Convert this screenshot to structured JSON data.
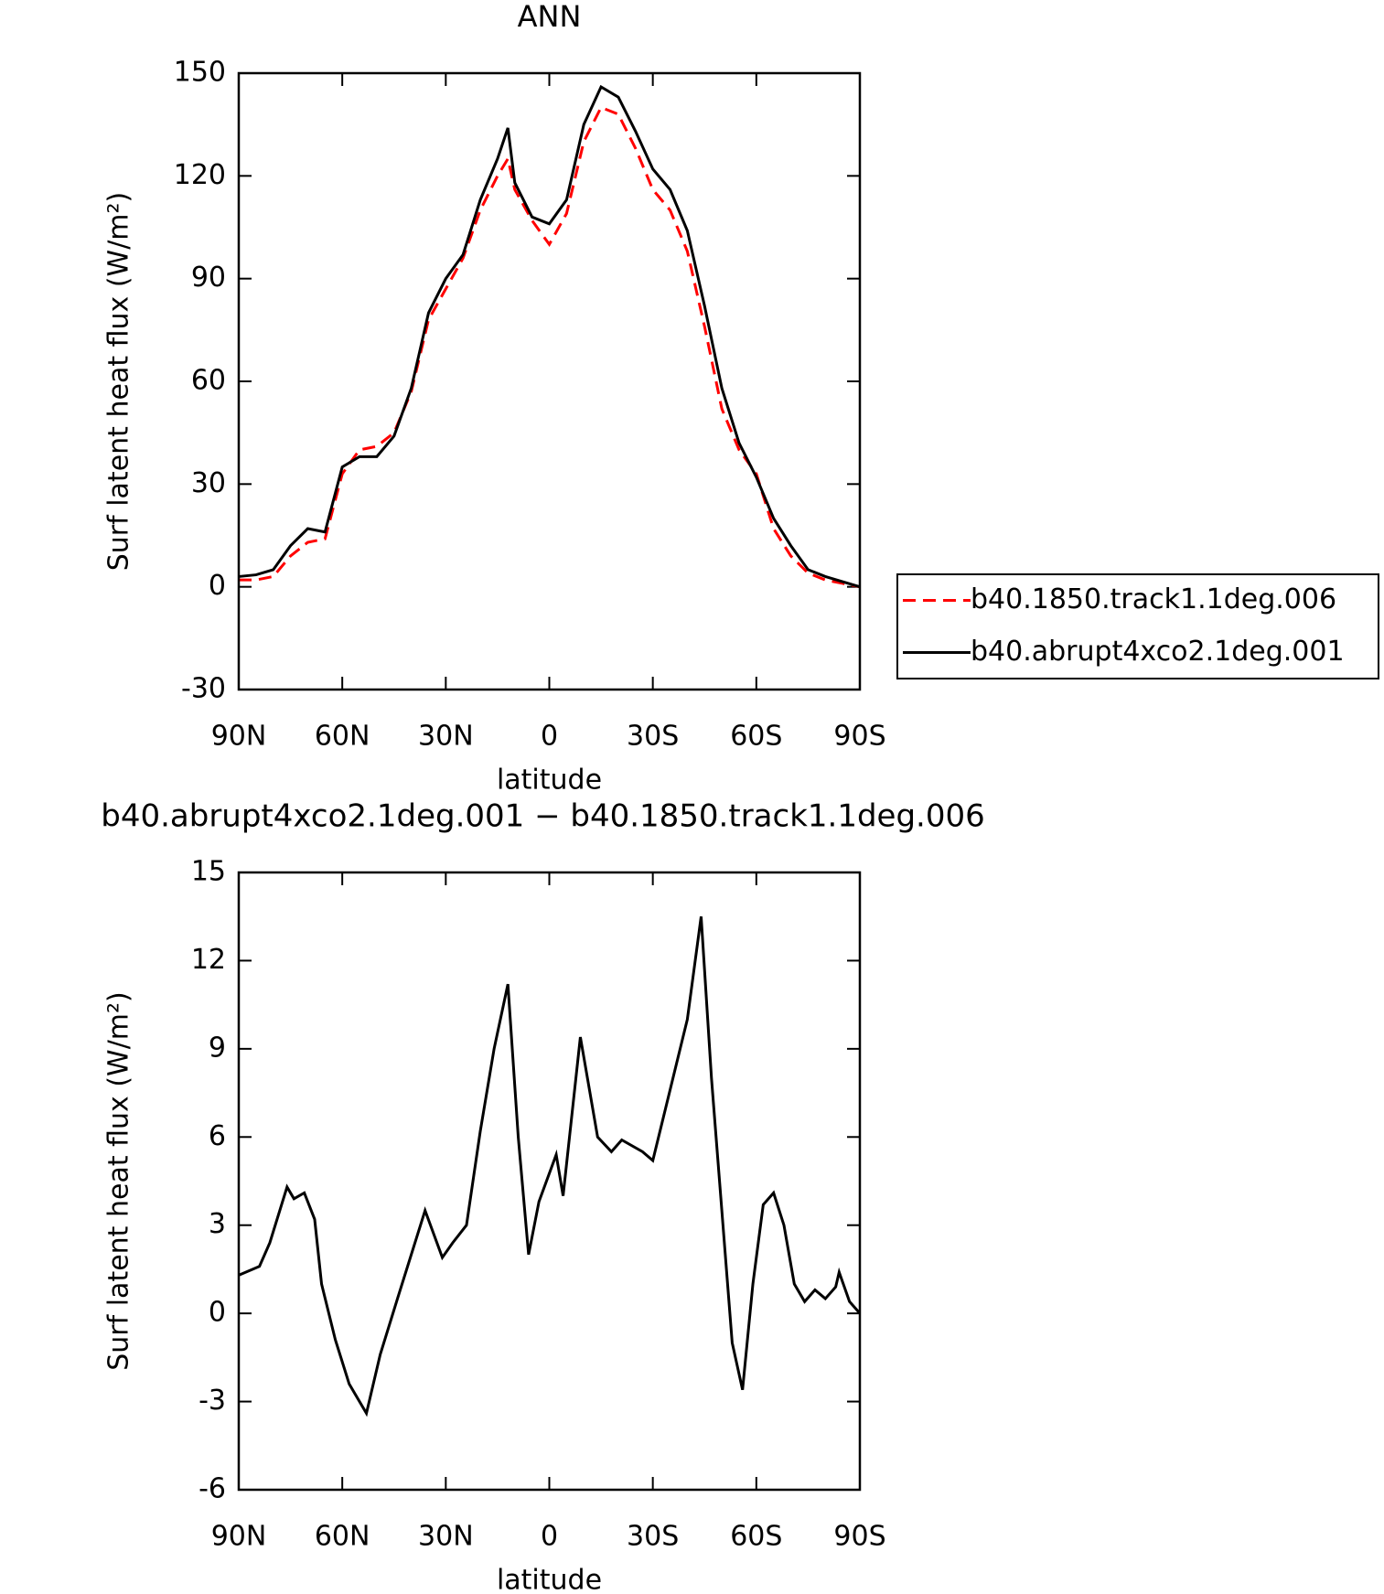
{
  "chart_data": [
    {
      "type": "line",
      "title": "ANN",
      "ylabel": "Surf latent heat flux (W/m²)",
      "xlabel": "latitude",
      "x": [
        90,
        85,
        80,
        75,
        70,
        65,
        60,
        55,
        50,
        45,
        40,
        35,
        30,
        25,
        20,
        15,
        12,
        10,
        5,
        0,
        -5,
        -10,
        -15,
        -20,
        -25,
        -30,
        -35,
        -40,
        -45,
        -50,
        -55,
        -60,
        -65,
        -70,
        -75,
        -80,
        -85,
        -90
      ],
      "series": [
        {
          "name": "b40.1850.track1.1deg.006",
          "color": "#ff0000",
          "linestyle": "dashed",
          "values": [
            2,
            2,
            3,
            9,
            13,
            14,
            33,
            40,
            41,
            45,
            57,
            78,
            87,
            96,
            110,
            120,
            125,
            116,
            107,
            100,
            109,
            130,
            140,
            138,
            128,
            116,
            110,
            98,
            76,
            52,
            40,
            33,
            17,
            9,
            4,
            2,
            1,
            0
          ]
        },
        {
          "name": "b40.abrupt4xco2.1deg.001",
          "color": "#000000",
          "linestyle": "solid",
          "values": [
            3,
            3.5,
            5,
            12,
            17,
            16,
            35,
            38,
            38,
            44,
            58,
            80,
            90,
            97,
            113,
            125,
            134,
            118,
            108,
            106,
            113,
            135,
            146,
            143,
            133,
            122,
            116,
            104,
            82,
            58,
            42,
            32,
            20,
            12,
            5,
            3,
            1.5,
            0
          ]
        }
      ],
      "xlim": [
        90,
        -90
      ],
      "xticks": [
        {
          "value": 90,
          "label": "90N"
        },
        {
          "value": 60,
          "label": "60N"
        },
        {
          "value": 30,
          "label": "30N"
        },
        0,
        {
          "value": -30,
          "label": "30S"
        },
        {
          "value": -60,
          "label": "60S"
        },
        {
          "value": -90,
          "label": "90S"
        }
      ],
      "ylim": [
        -30,
        150
      ],
      "yticks": [
        -30,
        0,
        30,
        60,
        90,
        120,
        150
      ],
      "legend": "right"
    },
    {
      "type": "line",
      "title": "b40.abrupt4xco2.1deg.001 − b40.1850.track1.1deg.006",
      "ylabel": "Surf latent heat flux (W/m²)",
      "xlabel": "latitude",
      "x": [
        90,
        84,
        81,
        76,
        74,
        71,
        68,
        66,
        62,
        58,
        53,
        49,
        44,
        36,
        31,
        28,
        24,
        20,
        16,
        12,
        9,
        6,
        3,
        -2,
        -4,
        -9,
        -14,
        -18,
        -21,
        -27,
        -30,
        -35,
        -40,
        -44,
        -47,
        -53,
        -56,
        -59,
        -62,
        -65,
        -68,
        -71,
        -74,
        -77,
        -80,
        -83,
        -84,
        -87,
        -90
      ],
      "series": [
        {
          "color": "#000000",
          "linestyle": "solid",
          "values": [
            1.3,
            1.6,
            2.4,
            4.3,
            3.9,
            4.1,
            3.2,
            1.0,
            -0.9,
            -2.4,
            -3.4,
            -1.4,
            0.5,
            3.5,
            1.9,
            2.4,
            3.0,
            6.2,
            9,
            11.2,
            6,
            2.0,
            3.8,
            5.4,
            4.0,
            9.4,
            6,
            5.5,
            5.9,
            5.5,
            5.2,
            7.6,
            10,
            13.5,
            8,
            -1,
            -2.6,
            1,
            3.7,
            4.1,
            3.0,
            1.0,
            0.4,
            0.8,
            0.5,
            0.9,
            1.4,
            0.4,
            0
          ]
        }
      ],
      "xlim": [
        90,
        -90
      ],
      "xticks": [
        {
          "value": 90,
          "label": "90N"
        },
        {
          "value": 60,
          "label": "60N"
        },
        {
          "value": 30,
          "label": "30N"
        },
        0,
        {
          "value": -30,
          "label": "30S"
        },
        {
          "value": -60,
          "label": "60S"
        },
        {
          "value": -90,
          "label": "90S"
        }
      ],
      "ylim": [
        -6,
        15
      ],
      "yticks": [
        -6,
        -3,
        0,
        3,
        6,
        9,
        12,
        15
      ]
    }
  ]
}
